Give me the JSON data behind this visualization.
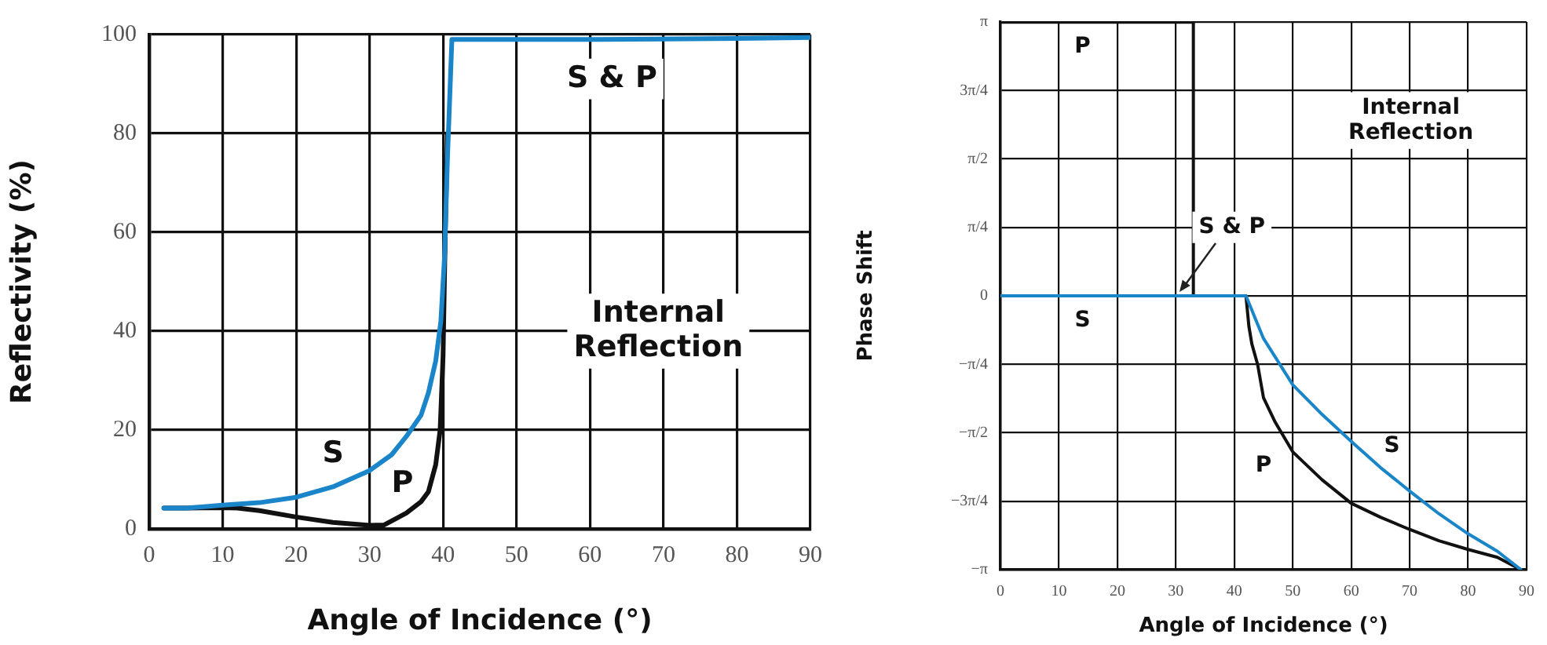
{
  "chart_data": [
    {
      "type": "line",
      "xlabel": "Angle of Incidence (°)",
      "ylabel": "Reflectivity (%)",
      "xlim": [
        0,
        90
      ],
      "xticks": [
        0,
        10,
        20,
        30,
        40,
        50,
        60,
        70,
        80,
        90
      ],
      "ylim": [
        0,
        100
      ],
      "yticks": [
        0,
        20,
        40,
        60,
        80,
        100
      ],
      "grid": true,
      "marker": "none",
      "line_style": "solid",
      "series": [
        {
          "name": "P",
          "color": "#111111",
          "x": [
            2,
            5,
            10,
            12,
            15,
            20,
            25,
            30,
            32,
            35,
            37,
            38,
            39,
            39.6,
            40,
            40.3,
            40.6
          ],
          "values": [
            4.2,
            4.2,
            4.3,
            4.2,
            3.7,
            2.4,
            1.3,
            0.7,
            0.8,
            3.2,
            5.5,
            7.5,
            13,
            20,
            35,
            60,
            80
          ]
        },
        {
          "name": "S",
          "color": "#1a85c8",
          "x": [
            2,
            5,
            10,
            15,
            20,
            25,
            30,
            33,
            35,
            37,
            38,
            39,
            39.7,
            40.2,
            40.6,
            41.2,
            50,
            60,
            70,
            80,
            90
          ],
          "values": [
            4.2,
            4.2,
            4.8,
            5.3,
            6.4,
            8.5,
            11.8,
            15,
            18.7,
            23,
            27.5,
            34,
            42,
            55,
            75,
            99,
            99,
            99,
            99.1,
            99.2,
            99.4
          ]
        }
      ],
      "annotations": [
        "S & P",
        "Internal\nReflection"
      ]
    },
    {
      "type": "line",
      "xlabel": "Angle of Incidence (°)",
      "ylabel": "Phase Shift",
      "xlim": [
        0,
        90
      ],
      "xticks": [
        0,
        10,
        20,
        30,
        40,
        50,
        60,
        70,
        80,
        90
      ],
      "ylim": [
        -3.1416,
        3.1416
      ],
      "yticks": [
        {
          "value": -3.1416,
          "label": "−π"
        },
        {
          "value": -2.3562,
          "label": "−3π/4"
        },
        {
          "value": -1.5708,
          "label": "−π/2"
        },
        {
          "value": -0.7854,
          "label": "−π/4"
        },
        0,
        {
          "value": 0.7854,
          "label": "π/4"
        },
        {
          "value": 1.5708,
          "label": "π/2"
        },
        {
          "value": 2.3562,
          "label": "3π/4"
        },
        {
          "value": 3.1416,
          "label": "π"
        }
      ],
      "grid": true,
      "marker": "none",
      "line_style": "solid",
      "series": [
        {
          "name": "P",
          "color": "#111111",
          "x": [
            0,
            33,
            33,
            42,
            42.5,
            43,
            44,
            45,
            47,
            50,
            55,
            60,
            65,
            70,
            75,
            80,
            85,
            89
          ],
          "values": [
            3.14,
            3.14,
            0,
            0,
            -0.35,
            -0.55,
            -0.79,
            -1.17,
            -1.45,
            -1.79,
            -2.11,
            -2.38,
            -2.54,
            -2.68,
            -2.81,
            -2.91,
            -3.0,
            -3.14
          ]
        },
        {
          "name": "S",
          "color": "#1a85c8",
          "x": [
            0,
            42,
            45,
            50,
            55,
            60,
            65,
            70,
            75,
            80,
            85,
            89
          ],
          "values": [
            0,
            0,
            -0.49,
            -1.02,
            -1.36,
            -1.67,
            -1.97,
            -2.24,
            -2.5,
            -2.73,
            -2.93,
            -3.14
          ]
        }
      ],
      "annotations": [
        "Internal\nReflection",
        "S & P"
      ]
    }
  ]
}
